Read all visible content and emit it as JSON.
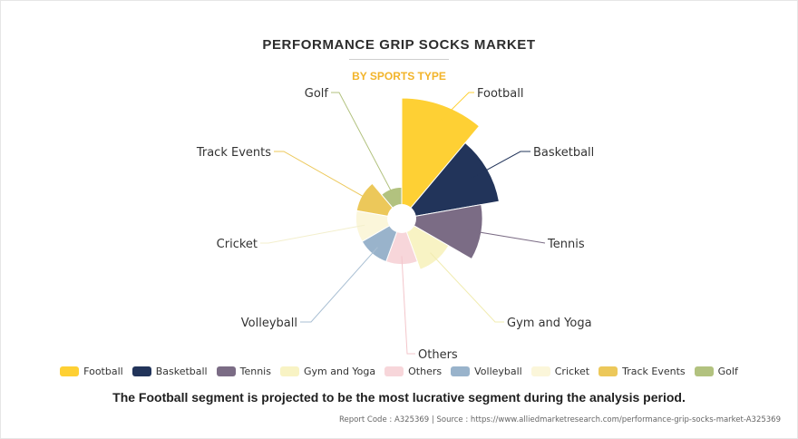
{
  "header": {
    "title": "PERFORMANCE GRIP SOCKS MARKET",
    "subtitle": "BY SPORTS TYPE"
  },
  "chart_data": {
    "type": "pie",
    "variant": "polar-area",
    "title": "PERFORMANCE GRIP SOCKS MARKET",
    "subtitle": "BY SPORTS TYPE",
    "categories": [
      "Football",
      "Basketball",
      "Tennis",
      "Gym and Yoga",
      "Others",
      "Volleyball",
      "Cricket",
      "Track Events",
      "Golf"
    ],
    "values": [
      100,
      82,
      67,
      45,
      38,
      38,
      38,
      38,
      26
    ],
    "colors": [
      "#fed034",
      "#22345a",
      "#7b6c85",
      "#f8f3c4",
      "#f7d6da",
      "#99b3cb",
      "#fbf6da",
      "#ecc85a",
      "#b2c27f"
    ],
    "leader_colors": [
      "#fed034",
      "#22345a",
      "#7b6c85",
      "#f1ecb1",
      "#f3c6cb",
      "#a9bfd3",
      "#f3efcd",
      "#ecc85a",
      "#b2c27f"
    ],
    "legend_position": "bottom"
  },
  "footnote": "The Football segment is projected to be the most lucrative segment during the analysis period.",
  "source": "Report Code : A325369  |  Source : https://www.alliedmarketresearch.com/performance-grip-socks-market-A325369"
}
